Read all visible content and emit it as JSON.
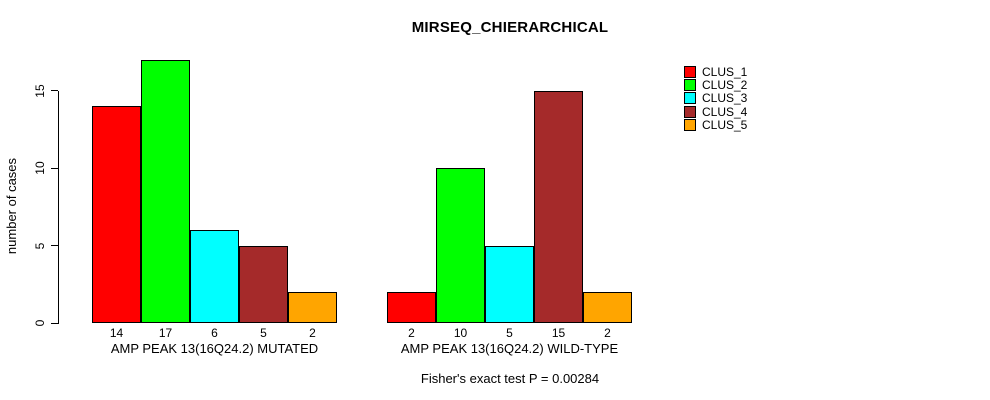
{
  "chart_data": {
    "type": "bar",
    "title": "MIRSEQ_CHIERARCHICAL",
    "ylabel": "number of cases",
    "xlabel": "",
    "categories": [
      "AMP PEAK 13(16Q24.2) MUTATED",
      "AMP PEAK 13(16Q24.2) WILD-TYPE"
    ],
    "series": [
      {
        "name": "CLUS_1",
        "color": "#FF0000",
        "values": [
          14,
          2
        ]
      },
      {
        "name": "CLUS_2",
        "color": "#00FF00",
        "values": [
          17,
          10
        ]
      },
      {
        "name": "CLUS_3",
        "color": "#00FFFF",
        "values": [
          6,
          5
        ]
      },
      {
        "name": "CLUS_4",
        "color": "#A52A2A",
        "values": [
          5,
          15
        ]
      },
      {
        "name": "CLUS_5",
        "color": "#FFA500",
        "values": [
          2,
          2
        ]
      }
    ],
    "yticks": [
      0,
      5,
      10,
      15
    ],
    "ylim": [
      0,
      17
    ],
    "grid": false,
    "legend_position": "topright",
    "bar_value_labels": true,
    "annotation": "Fisher's exact test P = 0.00284"
  }
}
